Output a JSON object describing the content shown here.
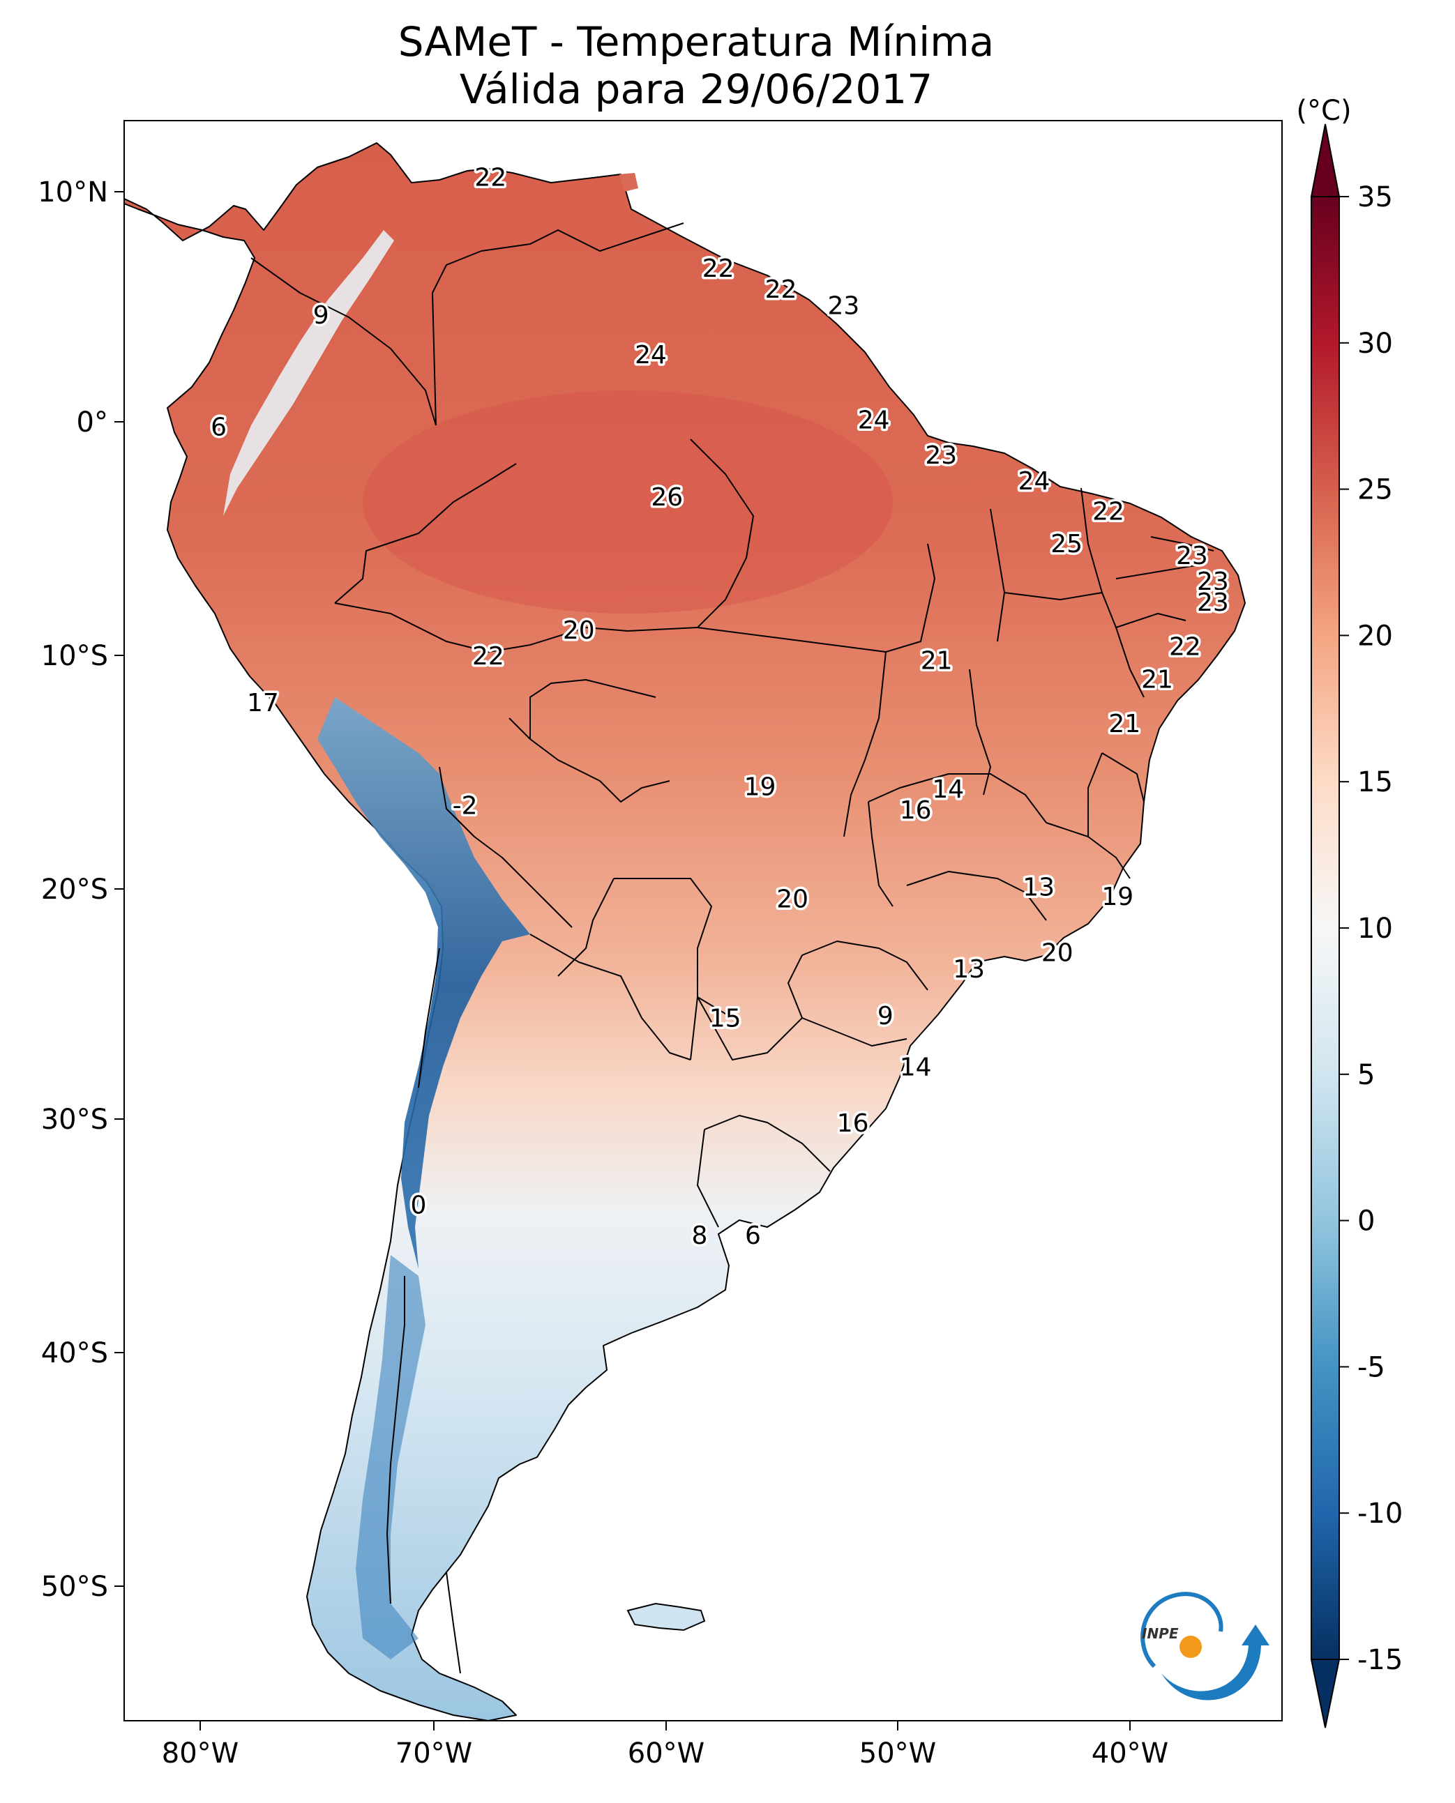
{
  "header": {
    "title": "SAMeT - Temperatura Mínima",
    "subtitle": "Válida para 29/06/2017"
  },
  "axes": {
    "lon_ticks": [
      "80°W",
      "70°W",
      "60°W",
      "50°W",
      "40°W"
    ],
    "lat_ticks": [
      "10°N",
      "0°",
      "10°S",
      "20°S",
      "30°S",
      "40°S",
      "50°S"
    ]
  },
  "colorbar": {
    "unit": "(°C)",
    "ticks": [
      "35",
      "30",
      "25",
      "20",
      "15",
      "10",
      "5",
      "0",
      "-5",
      "-10",
      "-15"
    ],
    "min": -15,
    "max": 35,
    "colormap": "RdBu_r",
    "extend": "both"
  },
  "logo": {
    "text": "INPE",
    "color_blue": "#1d7bc0",
    "color_orange": "#f39a1d"
  },
  "annotations": [
    {
      "text": "22",
      "lon": -67.5,
      "lat": 10.5
    },
    {
      "text": "9",
      "lon": -74.8,
      "lat": 4.6
    },
    {
      "text": "6",
      "lon": -79.2,
      "lat": -0.2
    },
    {
      "text": "22",
      "lon": -57.7,
      "lat": 6.6
    },
    {
      "text": "22",
      "lon": -55.0,
      "lat": 5.7
    },
    {
      "text": "23",
      "lon": -52.3,
      "lat": 5.0
    },
    {
      "text": "24",
      "lon": -60.6,
      "lat": 2.9
    },
    {
      "text": "24",
      "lon": -51.0,
      "lat": 0.1
    },
    {
      "text": "23",
      "lon": -48.1,
      "lat": -1.4
    },
    {
      "text": "26",
      "lon": -59.9,
      "lat": -3.2
    },
    {
      "text": "24",
      "lon": -44.1,
      "lat": -2.5
    },
    {
      "text": "22",
      "lon": -40.9,
      "lat": -3.8
    },
    {
      "text": "25",
      "lon": -42.7,
      "lat": -5.2
    },
    {
      "text": "23",
      "lon": -37.3,
      "lat": -5.7
    },
    {
      "text": "23",
      "lon": -36.4,
      "lat": -6.8
    },
    {
      "text": "23",
      "lon": -36.4,
      "lat": -7.7
    },
    {
      "text": "22",
      "lon": -37.6,
      "lat": -9.6
    },
    {
      "text": "21",
      "lon": -38.8,
      "lat": -11.0
    },
    {
      "text": "21",
      "lon": -40.2,
      "lat": -12.9
    },
    {
      "text": "20",
      "lon": -63.7,
      "lat": -8.9
    },
    {
      "text": "22",
      "lon": -67.6,
      "lat": -10.0
    },
    {
      "text": "21",
      "lon": -48.3,
      "lat": -10.2
    },
    {
      "text": "17",
      "lon": -77.3,
      "lat": -12.0
    },
    {
      "text": "19",
      "lon": -55.9,
      "lat": -15.6
    },
    {
      "text": "14",
      "lon": -47.8,
      "lat": -15.7
    },
    {
      "text": "16",
      "lon": -49.2,
      "lat": -16.6
    },
    {
      "text": "-2",
      "lon": -68.6,
      "lat": -16.4
    },
    {
      "text": "13",
      "lon": -43.9,
      "lat": -19.9
    },
    {
      "text": "19",
      "lon": -40.5,
      "lat": -20.3
    },
    {
      "text": "20",
      "lon": -54.5,
      "lat": -20.4
    },
    {
      "text": "20",
      "lon": -43.1,
      "lat": -22.7
    },
    {
      "text": "13",
      "lon": -46.9,
      "lat": -23.4
    },
    {
      "text": "9",
      "lon": -50.5,
      "lat": -25.4
    },
    {
      "text": "15",
      "lon": -57.4,
      "lat": -25.5
    },
    {
      "text": "14",
      "lon": -49.2,
      "lat": -27.6
    },
    {
      "text": "16",
      "lon": -51.9,
      "lat": -30.0
    },
    {
      "text": "0",
      "lon": -70.6,
      "lat": -33.5
    },
    {
      "text": "8",
      "lon": -58.5,
      "lat": -34.8
    },
    {
      "text": "6",
      "lon": -56.2,
      "lat": -34.8
    }
  ]
}
